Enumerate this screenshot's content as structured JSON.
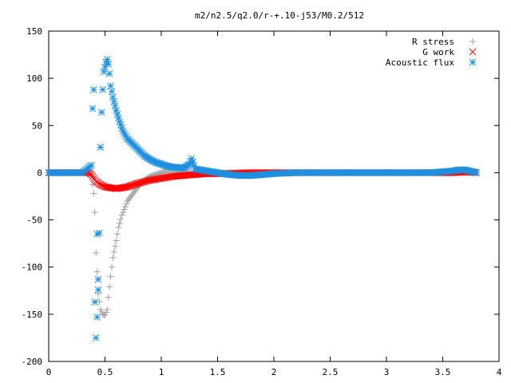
{
  "chart_data": {
    "type": "scatter",
    "title": "m2/n2.5/q2.0/r-+.10-j53/M0.2/512",
    "xlabel": "",
    "ylabel": "",
    "xlim": [
      0,
      4
    ],
    "ylim": [
      -200,
      150
    ],
    "x_ticks": [
      0,
      0.5,
      1,
      1.5,
      2,
      2.5,
      3,
      3.5,
      4
    ],
    "x_tick_labels": [
      "0",
      "0.5",
      "1",
      "1.5",
      "2",
      "2.5",
      "3",
      "3.5",
      "4"
    ],
    "y_ticks": [
      -200,
      -150,
      -100,
      -50,
      0,
      50,
      100,
      150
    ],
    "y_tick_labels": [
      "-200",
      "-150",
      "-100",
      "-50",
      "0",
      "50",
      "100",
      "150"
    ],
    "grid": false,
    "legend_position": "top-right",
    "series": [
      {
        "name": "R stress",
        "color": "#a0a0a0",
        "marker": "plus",
        "points": [
          [
            0.0,
            0
          ],
          [
            0.1,
            0
          ],
          [
            0.2,
            0
          ],
          [
            0.3,
            0
          ],
          [
            0.36,
            0
          ],
          [
            0.38,
            -3
          ],
          [
            0.4,
            -22
          ],
          [
            0.41,
            -42
          ],
          [
            0.42,
            -85
          ],
          [
            0.43,
            -105
          ],
          [
            0.44,
            -128
          ],
          [
            0.46,
            -145
          ],
          [
            0.48,
            -150
          ],
          [
            0.5,
            -151
          ],
          [
            0.52,
            -145
          ],
          [
            0.53,
            -132
          ],
          [
            0.55,
            -110
          ],
          [
            0.57,
            -90
          ],
          [
            0.6,
            -72
          ],
          [
            0.62,
            -58
          ],
          [
            0.65,
            -45
          ],
          [
            0.68,
            -36
          ],
          [
            0.7,
            -30
          ],
          [
            0.75,
            -22
          ],
          [
            0.8,
            -14
          ],
          [
            0.85,
            -8
          ],
          [
            0.9,
            -4
          ],
          [
            0.95,
            -2
          ],
          [
            1.0,
            0
          ],
          [
            1.05,
            1
          ],
          [
            1.1,
            1
          ],
          [
            1.2,
            1
          ],
          [
            1.3,
            0
          ],
          [
            1.4,
            -1
          ],
          [
            1.5,
            -1
          ],
          [
            1.6,
            0
          ],
          [
            1.7,
            0
          ],
          [
            1.8,
            0
          ],
          [
            1.9,
            0
          ],
          [
            2.0,
            0
          ],
          [
            2.2,
            0
          ],
          [
            2.4,
            0
          ],
          [
            2.6,
            0
          ],
          [
            2.8,
            0
          ],
          [
            3.0,
            0
          ],
          [
            3.2,
            0
          ],
          [
            3.4,
            0
          ],
          [
            3.6,
            0
          ],
          [
            3.8,
            0
          ]
        ]
      },
      {
        "name": "G work",
        "color": "#ff0000",
        "marker": "cross",
        "points": [
          [
            0.0,
            0
          ],
          [
            0.2,
            0
          ],
          [
            0.36,
            0
          ],
          [
            0.38,
            -2
          ],
          [
            0.4,
            -6
          ],
          [
            0.42,
            -9
          ],
          [
            0.45,
            -12
          ],
          [
            0.5,
            -15
          ],
          [
            0.55,
            -16
          ],
          [
            0.6,
            -17
          ],
          [
            0.65,
            -16
          ],
          [
            0.7,
            -15
          ],
          [
            0.75,
            -13
          ],
          [
            0.8,
            -11
          ],
          [
            0.9,
            -8
          ],
          [
            1.0,
            -6
          ],
          [
            1.1,
            -4
          ],
          [
            1.2,
            -3
          ],
          [
            1.3,
            -2
          ],
          [
            1.4,
            -1
          ],
          [
            1.5,
            -1
          ],
          [
            1.6,
            -1
          ],
          [
            1.8,
            0
          ],
          [
            2.0,
            0
          ],
          [
            2.2,
            0
          ],
          [
            2.4,
            0
          ],
          [
            2.6,
            0
          ],
          [
            2.8,
            0
          ],
          [
            3.0,
            0
          ],
          [
            3.2,
            0
          ],
          [
            3.4,
            0
          ],
          [
            3.6,
            0
          ],
          [
            3.7,
            1
          ],
          [
            3.8,
            0
          ]
        ]
      },
      {
        "name": "Acoustic flux",
        "color": "#1f8fdf",
        "marker": "star",
        "points": [
          [
            0.0,
            0
          ],
          [
            0.1,
            0
          ],
          [
            0.2,
            0
          ],
          [
            0.3,
            0
          ],
          [
            0.38,
            8
          ],
          [
            0.39,
            68
          ],
          [
            0.4,
            88
          ],
          [
            0.41,
            -137
          ],
          [
            0.42,
            -175
          ],
          [
            0.43,
            -153
          ],
          [
            0.43,
            -65
          ],
          [
            0.44,
            -113
          ],
          [
            0.44,
            -124
          ],
          [
            0.45,
            -64
          ],
          [
            0.46,
            27
          ],
          [
            0.47,
            64
          ],
          [
            0.48,
            88
          ],
          [
            0.49,
            107
          ],
          [
            0.5,
            112
          ],
          [
            0.51,
            117
          ],
          [
            0.52,
            120
          ],
          [
            0.53,
            115
          ],
          [
            0.54,
            105
          ],
          [
            0.55,
            92
          ],
          [
            0.57,
            80
          ],
          [
            0.6,
            66
          ],
          [
            0.63,
            54
          ],
          [
            0.66,
            44
          ],
          [
            0.7,
            36
          ],
          [
            0.75,
            30
          ],
          [
            0.8,
            24
          ],
          [
            0.85,
            18
          ],
          [
            0.9,
            14
          ],
          [
            0.95,
            11
          ],
          [
            1.0,
            9
          ],
          [
            1.05,
            7
          ],
          [
            1.1,
            6
          ],
          [
            1.2,
            5
          ],
          [
            1.25,
            9
          ],
          [
            1.27,
            15
          ],
          [
            1.3,
            4
          ],
          [
            1.4,
            2
          ],
          [
            1.5,
            0
          ],
          [
            1.6,
            -2
          ],
          [
            1.7,
            -3
          ],
          [
            1.8,
            -3
          ],
          [
            1.9,
            -2
          ],
          [
            2.0,
            -1
          ],
          [
            2.2,
            0
          ],
          [
            2.4,
            0
          ],
          [
            2.6,
            0
          ],
          [
            2.8,
            0
          ],
          [
            3.0,
            0
          ],
          [
            3.2,
            0
          ],
          [
            3.4,
            0
          ],
          [
            3.6,
            2
          ],
          [
            3.65,
            3
          ],
          [
            3.7,
            3
          ],
          [
            3.8,
            0
          ]
        ]
      }
    ]
  }
}
